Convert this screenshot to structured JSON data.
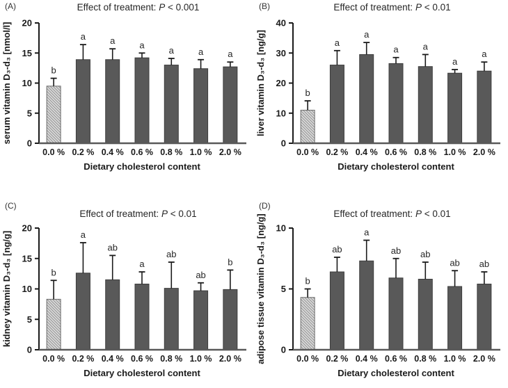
{
  "colors": {
    "bar_fill": "#595959",
    "bar_stroke": "#3d3d3d",
    "hatch_bg": "#d9d9d9",
    "hatch_line": "#8c8c8c",
    "hatch_stroke": "#6b6b6b",
    "axis": "#1a1a1a",
    "baseline": "#595959",
    "text": "#262626"
  },
  "chart_data": [
    {
      "type": "bar",
      "panel_label": "(A)",
      "title": "Effect of treatment: P < 0.001",
      "title_prefix": "Effect of treatment: ",
      "title_p": "P",
      "title_rest": " < 0.001",
      "ylabel": "serum vitamin D₃-d₃ [nmol/l]",
      "xlabel": "Dietary cholesterol content",
      "categories": [
        "0.0 %",
        "0.2 %",
        "0.4 %",
        "0.6 %",
        "0.8 %",
        "1.0 %",
        "2.0 %"
      ],
      "values": [
        9.5,
        13.9,
        13.9,
        14.2,
        13.0,
        12.4,
        12.7
      ],
      "error_upper": [
        10.8,
        16.4,
        15.7,
        15.0,
        14.1,
        13.9,
        13.5
      ],
      "sig_letters": [
        "b",
        "a",
        "a",
        "a",
        "a",
        "a",
        "a"
      ],
      "ylim": [
        0,
        20
      ],
      "yticks": [
        0,
        5,
        10,
        15,
        20
      ],
      "first_bar_hatched": true,
      "grid": false,
      "legend": "none"
    },
    {
      "type": "bar",
      "panel_label": "(B)",
      "title": "Effect of treatment: P < 0.01",
      "title_prefix": "Effect of treatment: ",
      "title_p": "P",
      "title_rest": " < 0.01",
      "ylabel": "liver vitamin D₃-d₃ [ng/g]",
      "xlabel": "Dietary cholesterol content",
      "categories": [
        "0.0 %",
        "0.2 %",
        "0.4 %",
        "0.6 %",
        "0.8 %",
        "1.0 %",
        "2.0 %"
      ],
      "values": [
        11.0,
        26.0,
        29.5,
        26.5,
        25.5,
        23.3,
        24.0
      ],
      "error_upper": [
        14.1,
        30.8,
        33.5,
        28.5,
        29.5,
        24.5,
        27.0
      ],
      "sig_letters": [
        "b",
        "a",
        "a",
        "a",
        "a",
        "a",
        "a"
      ],
      "ylim": [
        0,
        40
      ],
      "yticks": [
        0,
        10,
        20,
        30,
        40
      ],
      "first_bar_hatched": true,
      "grid": false,
      "legend": "none"
    },
    {
      "type": "bar",
      "panel_label": "(C)",
      "title": "Effect of treatment: P < 0.01",
      "title_prefix": "Effect of treatment: ",
      "title_p": "P",
      "title_rest": " < 0.01",
      "ylabel": "kidney vitamin D₃-d₃ [ng/g]",
      "xlabel": "Dietary cholesterol content",
      "categories": [
        "0.0 %",
        "0.2 %",
        "0.4 %",
        "0.6 %",
        "0.8 %",
        "1.0 %",
        "2.0 %"
      ],
      "values": [
        8.3,
        12.6,
        11.5,
        10.8,
        10.1,
        9.7,
        9.9
      ],
      "error_upper": [
        11.4,
        17.6,
        15.5,
        12.8,
        14.4,
        11.0,
        13.1
      ],
      "sig_letters": [
        "b",
        "a",
        "ab",
        "a",
        "ab",
        "ab",
        "b"
      ],
      "ylim": [
        0,
        20
      ],
      "yticks": [
        0,
        5,
        10,
        15,
        20
      ],
      "first_bar_hatched": true,
      "grid": false,
      "legend": "none"
    },
    {
      "type": "bar",
      "panel_label": "(D)",
      "title": "Effect of treatment: P < 0.01",
      "title_prefix": "Effect of treatment: ",
      "title_p": "P",
      "title_rest": " < 0.01",
      "ylabel": "adipose tissue vitamin D₃-d₃ [ng/g]",
      "xlabel": "Dietary cholesterol content",
      "categories": [
        "0.0 %",
        "0.2 %",
        "0.4 %",
        "0.6 %",
        "0.8 %",
        "1.0 %",
        "2.0 %"
      ],
      "values": [
        4.3,
        6.4,
        7.3,
        5.9,
        5.8,
        5.2,
        5.4
      ],
      "error_upper": [
        5.0,
        7.6,
        9.0,
        7.5,
        7.2,
        6.5,
        6.4
      ],
      "sig_letters": [
        "b",
        "ab",
        "a",
        "ab",
        "ab",
        "ab",
        "ab"
      ],
      "ylim": [
        0,
        10
      ],
      "yticks": [
        0,
        5,
        10
      ],
      "first_bar_hatched": true,
      "grid": false,
      "legend": "none"
    }
  ]
}
